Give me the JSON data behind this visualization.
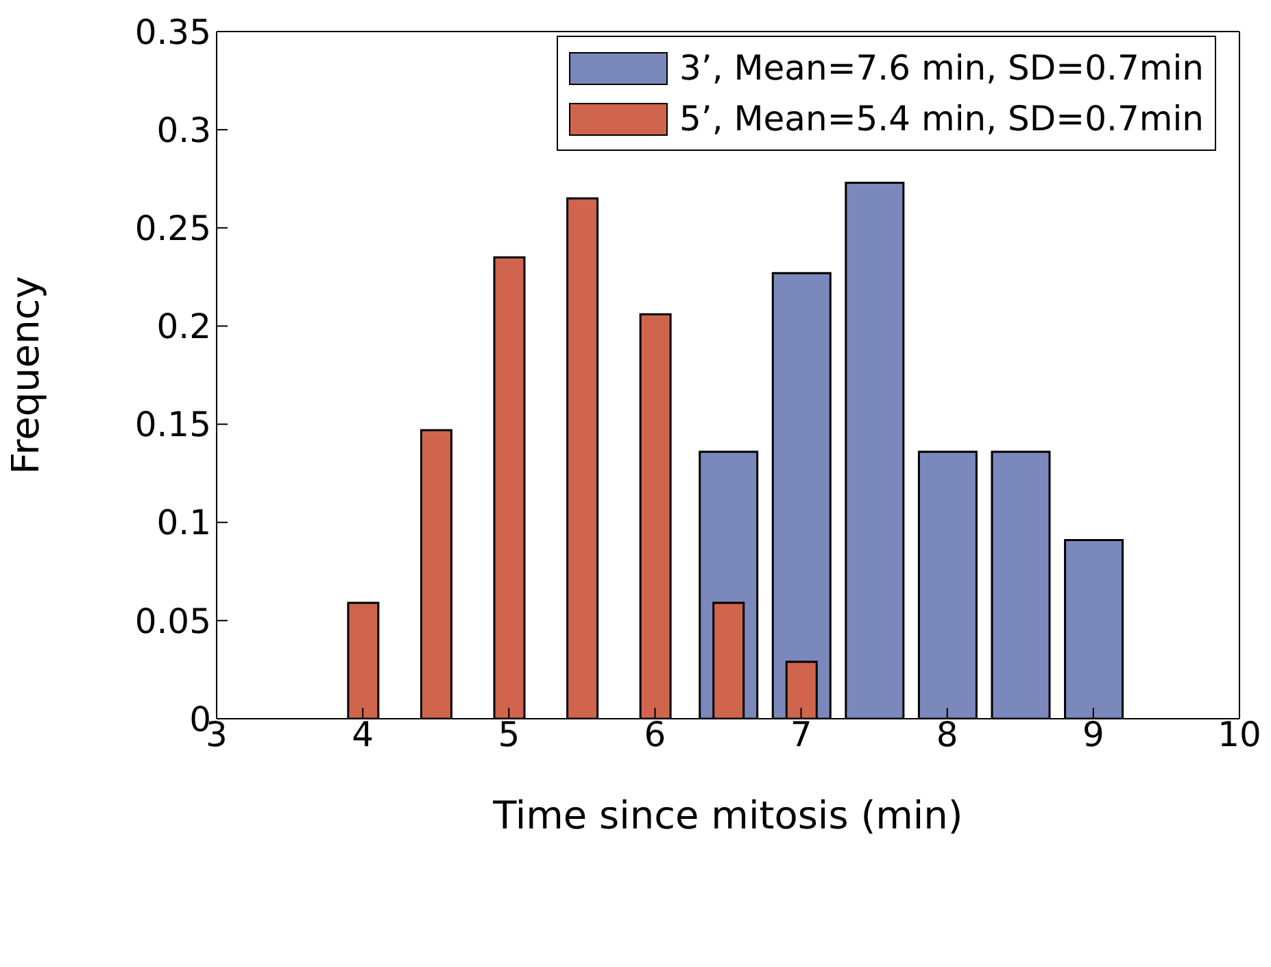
{
  "chart_data": {
    "type": "bar",
    "xlabel": "Time since mitosis (min)",
    "ylabel": "Frequency",
    "xlim": [
      3,
      10
    ],
    "xticks": [
      3,
      4,
      5,
      6,
      7,
      8,
      9,
      10
    ],
    "ylim": [
      0,
      0.35
    ],
    "yticks": [
      0,
      0.05,
      0.1,
      0.15,
      0.2,
      0.25,
      0.3,
      0.35
    ],
    "legend": "top right",
    "grid": false,
    "series": [
      {
        "name": "3’, Mean=7.6 min, SD=0.7min",
        "color": "#7b88bb",
        "x": [
          6.5,
          7,
          7.5,
          8,
          8.5,
          9
        ],
        "values": [
          0.136,
          0.227,
          0.273,
          0.136,
          0.136,
          0.091
        ]
      },
      {
        "name": "5’, Mean=5.4 min, SD=0.7min",
        "color": "#d0654d",
        "x": [
          4,
          4.5,
          5,
          5.5,
          6,
          6.5,
          7
        ],
        "values": [
          0.059,
          0.147,
          0.235,
          0.265,
          0.206,
          0.059,
          0.029
        ]
      }
    ]
  }
}
